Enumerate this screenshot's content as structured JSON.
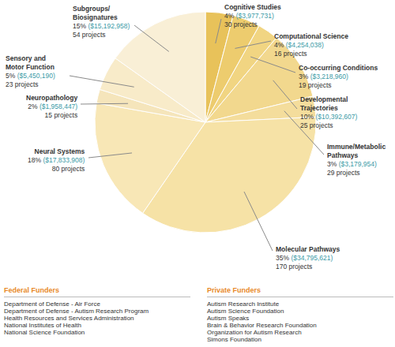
{
  "chart_data": {
    "type": "pie",
    "categories": [
      "Cognitive Studies",
      "Computational Science",
      "Co-occurring Conditions",
      "Developmental Trajectories",
      "Immune/Metabolic Pathways",
      "Molecular Pathways",
      "Neural Systems",
      "Neuropathology",
      "Sensory and Motor Function",
      "Subgroups/Biosignatures"
    ],
    "values": [
      4,
      4,
      3,
      10,
      3,
      35,
      18,
      2,
      5,
      15
    ],
    "value_labels": [
      "4%",
      "4%",
      "3%",
      "10%",
      "3%",
      "35%",
      "18%",
      "2%",
      "5%",
      "15%"
    ],
    "amounts": [
      "($3,977,731)",
      "($4,254,038)",
      "($3,218,960)",
      "($10,392,607)",
      "($3,179,954)",
      "($34,795,621)",
      "($17,833,908)",
      "($1,958,447)",
      "($5,450,190)",
      "($15,192,958)"
    ],
    "projects": [
      "30 projects",
      "16 projects",
      "19 projects",
      "25 projects",
      "29 projects",
      "170 projects",
      "80 projects",
      "15 projects",
      "23 projects",
      "54 projects"
    ],
    "colors": [
      "#e8c25a",
      "#edcc6e",
      "#f1d582",
      "#f2d88e",
      "#f4dd9c",
      "#f6e2a6",
      "#f8e7b6",
      "#f5e5bb",
      "#f8ebc9",
      "#f9efd6"
    ],
    "data_labels": true,
    "legend": false
  },
  "funders": {
    "federal": {
      "title": "Federal Funders",
      "items": [
        "Department of Defense - Air Force",
        "Department of Defense - Autism Research Program",
        "Health Resources and Services Administration",
        "National Institutes of Health",
        "National Science Foundation"
      ]
    },
    "private": {
      "title": "Private Funders",
      "items": [
        "Autism Research Institute",
        "Autism Science Foundation",
        "Autism Speaks",
        "Brain & Behavior Research Foundation",
        "Organization for Autism Research",
        "Simons Foundation"
      ]
    }
  }
}
